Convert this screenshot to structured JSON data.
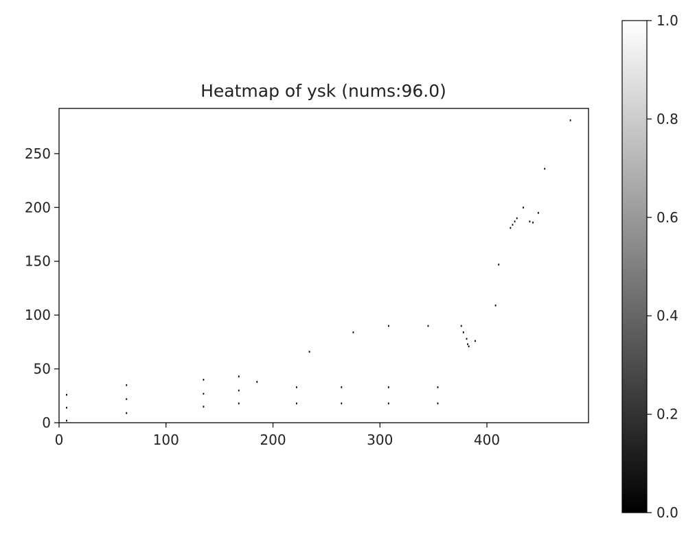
{
  "chart_data": {
    "type": "heatmap",
    "title": "Heatmap of ysk (nums:96.0)",
    "xlabel": "",
    "ylabel": "",
    "xlim": [
      0,
      495
    ],
    "ylim": [
      0,
      292
    ],
    "x_ticks": [
      0,
      100,
      200,
      300,
      400
    ],
    "y_ticks": [
      0,
      50,
      100,
      150,
      200,
      250
    ],
    "colorbar": {
      "colormap": "gray",
      "range": [
        0.0,
        1.0
      ],
      "ticks": [
        "0.0",
        "0.2",
        "0.4",
        "0.6",
        "0.8",
        "1.0"
      ]
    },
    "background_value": 1.0,
    "marked_value": 0.0,
    "points": [
      {
        "x": 7,
        "y": 2
      },
      {
        "x": 7,
        "y": 14
      },
      {
        "x": 7,
        "y": 26
      },
      {
        "x": 63,
        "y": 9
      },
      {
        "x": 63,
        "y": 22
      },
      {
        "x": 63,
        "y": 35
      },
      {
        "x": 135,
        "y": 15
      },
      {
        "x": 135,
        "y": 27
      },
      {
        "x": 135,
        "y": 40
      },
      {
        "x": 168,
        "y": 18
      },
      {
        "x": 168,
        "y": 30
      },
      {
        "x": 168,
        "y": 43
      },
      {
        "x": 185,
        "y": 38
      },
      {
        "x": 222,
        "y": 18
      },
      {
        "x": 222,
        "y": 33
      },
      {
        "x": 234,
        "y": 66
      },
      {
        "x": 264,
        "y": 18
      },
      {
        "x": 264,
        "y": 33
      },
      {
        "x": 275,
        "y": 84
      },
      {
        "x": 308,
        "y": 18
      },
      {
        "x": 308,
        "y": 33
      },
      {
        "x": 308,
        "y": 90
      },
      {
        "x": 345,
        "y": 90
      },
      {
        "x": 354,
        "y": 18
      },
      {
        "x": 354,
        "y": 33
      },
      {
        "x": 376,
        "y": 90
      },
      {
        "x": 378,
        "y": 84
      },
      {
        "x": 381,
        "y": 78
      },
      {
        "x": 382,
        "y": 73
      },
      {
        "x": 383,
        "y": 71
      },
      {
        "x": 389,
        "y": 76
      },
      {
        "x": 408,
        "y": 109
      },
      {
        "x": 411,
        "y": 147
      },
      {
        "x": 422,
        "y": 181
      },
      {
        "x": 424,
        "y": 184
      },
      {
        "x": 426,
        "y": 187
      },
      {
        "x": 428,
        "y": 190
      },
      {
        "x": 434,
        "y": 200
      },
      {
        "x": 440,
        "y": 187
      },
      {
        "x": 443,
        "y": 186
      },
      {
        "x": 448,
        "y": 195
      },
      {
        "x": 454,
        "y": 236
      },
      {
        "x": 478,
        "y": 281
      }
    ]
  }
}
